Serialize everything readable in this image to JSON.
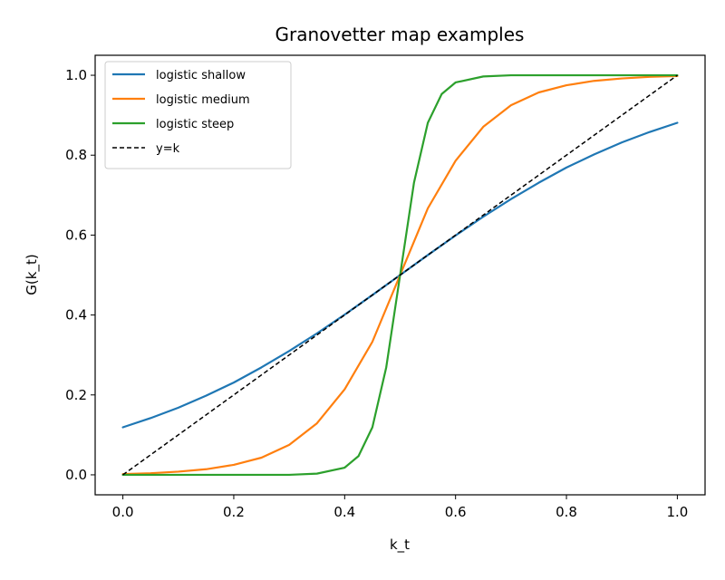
{
  "chart_data": {
    "type": "line",
    "title": "Granovetter map examples",
    "xlabel": "k_t",
    "ylabel": "G(k_t)",
    "xlim": [
      -0.05,
      1.05
    ],
    "ylim": [
      -0.05,
      1.05
    ],
    "xticks": [
      0.0,
      0.2,
      0.4,
      0.6,
      0.8,
      1.0
    ],
    "xtick_labels": [
      "0.0",
      "0.2",
      "0.4",
      "0.6",
      "0.8",
      "1.0"
    ],
    "yticks": [
      0.0,
      0.2,
      0.4,
      0.6,
      0.8,
      1.0
    ],
    "ytick_labels": [
      "0.0",
      "0.2",
      "0.4",
      "0.6",
      "0.8",
      "1.0"
    ],
    "grid": false,
    "legend_position": "upper-left",
    "series": [
      {
        "name": "logistic shallow",
        "color": "#1f77b4",
        "style": "solid",
        "x": [
          0.0,
          0.05,
          0.1,
          0.15,
          0.2,
          0.25,
          0.3,
          0.35,
          0.4,
          0.45,
          0.5,
          0.55,
          0.6,
          0.65,
          0.7,
          0.75,
          0.8,
          0.85,
          0.9,
          0.95,
          1.0
        ],
        "y": [
          0.119,
          0.142,
          0.168,
          0.198,
          0.231,
          0.269,
          0.31,
          0.354,
          0.401,
          0.45,
          0.5,
          0.55,
          0.599,
          0.646,
          0.69,
          0.731,
          0.769,
          0.802,
          0.832,
          0.858,
          0.881
        ]
      },
      {
        "name": "logistic medium",
        "color": "#ff7f0e",
        "style": "solid",
        "x": [
          0.0,
          0.05,
          0.1,
          0.15,
          0.2,
          0.25,
          0.3,
          0.35,
          0.4,
          0.45,
          0.5,
          0.55,
          0.6,
          0.65,
          0.7,
          0.75,
          0.8,
          0.85,
          0.9,
          0.95,
          1.0
        ],
        "y": [
          0.002,
          0.004,
          0.008,
          0.014,
          0.025,
          0.043,
          0.075,
          0.129,
          0.214,
          0.333,
          0.5,
          0.667,
          0.786,
          0.871,
          0.925,
          0.957,
          0.975,
          0.986,
          0.992,
          0.996,
          0.998
        ]
      },
      {
        "name": "logistic steep",
        "color": "#2ca02c",
        "style": "solid",
        "x": [
          0.0,
          0.05,
          0.1,
          0.15,
          0.2,
          0.25,
          0.3,
          0.35,
          0.4,
          0.425,
          0.45,
          0.475,
          0.5,
          0.525,
          0.55,
          0.575,
          0.6,
          0.65,
          0.7,
          0.75,
          0.8,
          0.85,
          0.9,
          0.95,
          1.0
        ],
        "y": [
          0.0,
          0.0,
          0.0,
          0.0,
          0.0,
          0.0,
          0.0,
          0.003,
          0.018,
          0.047,
          0.119,
          0.269,
          0.5,
          0.731,
          0.881,
          0.953,
          0.982,
          0.997,
          1.0,
          1.0,
          1.0,
          1.0,
          1.0,
          1.0,
          1.0
        ]
      },
      {
        "name": "y=k",
        "color": "#000000",
        "style": "dashed",
        "x": [
          0.0,
          1.0
        ],
        "y": [
          0.0,
          1.0
        ]
      }
    ]
  }
}
